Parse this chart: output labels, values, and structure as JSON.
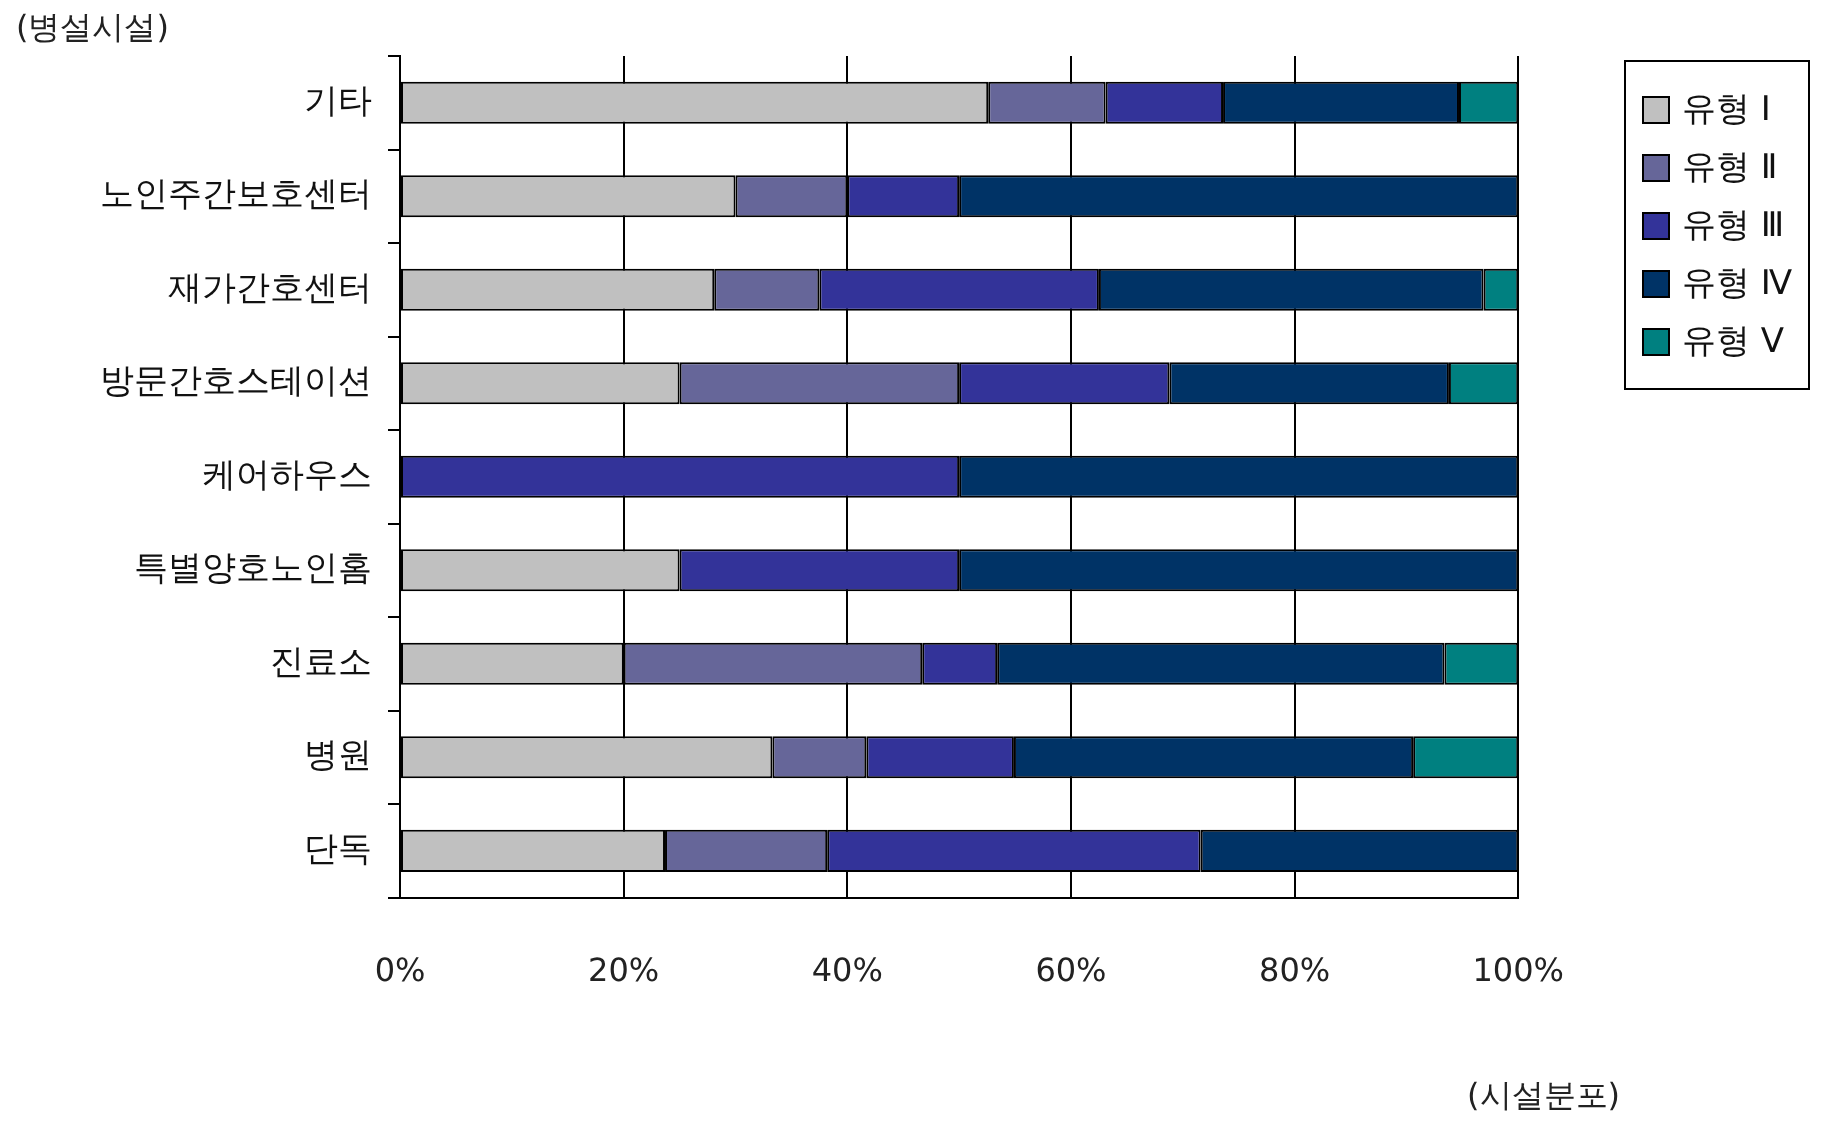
{
  "chart_data": {
    "type": "bar",
    "orientation": "horizontal",
    "stacked": true,
    "xlabel": "(시설분포)",
    "ylabel": "(병설시설)",
    "categories": [
      "기타",
      "노인주간보호센터",
      "재가간호센터",
      "방문간호스테이션",
      "케어하우스",
      "특별양호노인홈",
      "진료소",
      "병원",
      "단독"
    ],
    "series": [
      {
        "name": "유형 Ⅰ",
        "color": "#c0c0c0",
        "values": [
          52.6,
          30,
          28.1,
          25,
          0,
          25,
          20,
          33.3,
          23.7
        ]
      },
      {
        "name": "유형 Ⅱ",
        "color": "#666699",
        "values": [
          10.5,
          10,
          9.4,
          25,
          0,
          0,
          26.7,
          8.4,
          14.5
        ]
      },
      {
        "name": "유형 Ⅲ",
        "color": "#333399",
        "values": [
          10.5,
          10,
          25,
          18.8,
          50,
          25,
          6.7,
          13.2,
          33.4
        ]
      },
      {
        "name": "유형 Ⅳ",
        "color": "#003366",
        "values": [
          21.1,
          50,
          34.4,
          25,
          50,
          50,
          40,
          35.7,
          28.4
        ]
      },
      {
        "name": "유형 Ⅴ",
        "color": "#008080",
        "values": [
          5.3,
          0,
          3.1,
          6.2,
          0,
          0,
          6.6,
          9.4,
          0
        ]
      }
    ],
    "xlim": [
      0,
      100
    ],
    "xticks": [
      {
        "value": 0,
        "label": "0%"
      },
      {
        "value": 20,
        "label": "20%"
      },
      {
        "value": 40,
        "label": "40%"
      },
      {
        "value": 60,
        "label": "60%"
      },
      {
        "value": 80,
        "label": "80%"
      },
      {
        "value": 100,
        "label": "100%"
      }
    ],
    "grid": "x",
    "legend": "right"
  }
}
